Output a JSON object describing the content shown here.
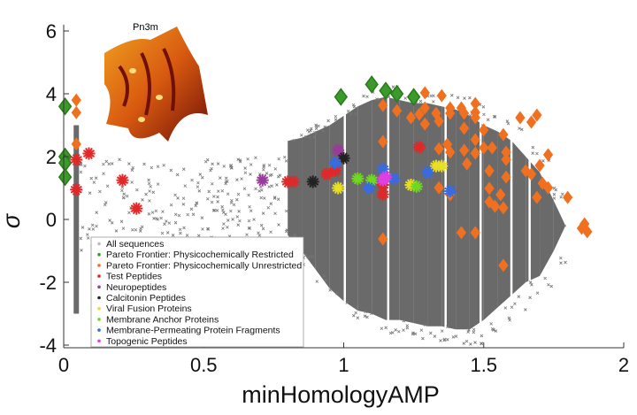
{
  "chart_data": {
    "type": "scatter",
    "xlabel": "minHomologyAMP",
    "ylabel": "σ",
    "xlim": [
      0,
      2
    ],
    "ylim": [
      -4.1,
      6
    ],
    "xticks": [
      "0",
      "0.5",
      "1",
      "1.5",
      "2"
    ],
    "xtick_values": [
      0,
      0.5,
      1,
      1.5,
      2
    ],
    "yticks": [
      "-4",
      "-2",
      "0",
      "2",
      "4",
      "6"
    ],
    "ytick_values": [
      -4,
      -2,
      0,
      2,
      4,
      6
    ],
    "grid": false,
    "legend_placement": "lower-left",
    "inset_label": "Pn3m",
    "all_sequences_density": [
      {
        "x": 0.045,
        "ymin": -3.0,
        "ymax": 3.0
      },
      {
        "x": 0.8,
        "ymin": -0.5,
        "ymax": 2.5
      },
      {
        "x": 0.85,
        "ymin": -1.0,
        "ymax": 2.6
      },
      {
        "x": 0.9,
        "ymin": -1.6,
        "ymax": 2.8
      },
      {
        "x": 0.95,
        "ymin": -2.2,
        "ymax": 3.0
      },
      {
        "x": 1.0,
        "ymin": -2.6,
        "ymax": 3.3
      },
      {
        "x": 1.05,
        "ymin": -2.9,
        "ymax": 3.6
      },
      {
        "x": 1.1,
        "ymin": -3.0,
        "ymax": 3.8
      },
      {
        "x": 1.15,
        "ymin": -3.2,
        "ymax": 3.9
      },
      {
        "x": 1.2,
        "ymin": -3.2,
        "ymax": 3.8
      },
      {
        "x": 1.25,
        "ymin": -3.3,
        "ymax": 3.7
      },
      {
        "x": 1.3,
        "ymin": -3.4,
        "ymax": 3.7
      },
      {
        "x": 1.35,
        "ymin": -3.4,
        "ymax": 3.6
      },
      {
        "x": 1.4,
        "ymin": -3.5,
        "ymax": 3.5
      },
      {
        "x": 1.45,
        "ymin": -3.5,
        "ymax": 3.3
      },
      {
        "x": 1.5,
        "ymin": -3.2,
        "ymax": 3.0
      },
      {
        "x": 1.55,
        "ymin": -2.8,
        "ymax": 2.8
      },
      {
        "x": 1.6,
        "ymin": -2.4,
        "ymax": 2.5
      },
      {
        "x": 1.65,
        "ymin": -2.0,
        "ymax": 2.0
      },
      {
        "x": 1.7,
        "ymin": -1.8,
        "ymax": 1.5
      },
      {
        "x": 1.75,
        "ymin": -1.0,
        "ymax": 0.6
      }
    ],
    "all_sequences_sparse": {
      "xmin": 0.06,
      "xmax": 0.8,
      "ymin": -1.0,
      "ymax": 2.0
    },
    "series": [
      {
        "name": "All sequences",
        "color": "#707070",
        "marker": "x"
      },
      {
        "name": "Pareto Frontier: Physicochemically Restricted",
        "color": "#3a9a2a",
        "marker": "diamond",
        "x": [
          0.005,
          0.005,
          0.005,
          0.005,
          0.99,
          1.1,
          1.15,
          1.19,
          1.25
        ],
        "y": [
          3.6,
          2.0,
          1.8,
          1.35,
          3.9,
          4.3,
          4.1,
          4.0,
          3.9
        ]
      },
      {
        "name": "Pareto Frontier: Physicochemically Unrestricted",
        "color": "#f07020",
        "marker": "diamond",
        "x": [
          0.045,
          0.045,
          0.045,
          1.1,
          1.14,
          1.14,
          1.14,
          1.19,
          1.24,
          1.27,
          1.29,
          1.29,
          1.29,
          1.35,
          1.33,
          1.34,
          1.38,
          1.38,
          1.42,
          1.43,
          1.43,
          1.47,
          1.47,
          1.47,
          1.47,
          1.47,
          1.47,
          1.42,
          1.34,
          1.37,
          1.38,
          1.43,
          1.44,
          1.34,
          1.38,
          1.5,
          1.5,
          1.53,
          1.57,
          1.58,
          1.58,
          1.58,
          1.52,
          1.52,
          1.56,
          1.52,
          1.54,
          1.57,
          1.63,
          1.67,
          1.69,
          1.65,
          1.67,
          1.7,
          1.71,
          1.69,
          1.73,
          1.73,
          1.8,
          1.85,
          1.87,
          1.86,
          1.57
        ],
        "y": [
          3.8,
          3.4,
          2.4,
          4.36,
          3.63,
          2.48,
          -0.62,
          3.46,
          3.24,
          3.35,
          4.03,
          3.55,
          3.04,
          3.94,
          3.38,
          3.13,
          3.55,
          3.38,
          3.55,
          3.38,
          2.9,
          3.69,
          3.41,
          3.24,
          2.54,
          2.11,
          -0.42,
          -0.42,
          2.25,
          2.39,
          2.14,
          2.2,
          1.77,
          1.01,
          0.79,
          2.85,
          2.28,
          2.28,
          2.7,
          2.14,
          1.91,
          1.35,
          1.55,
          0.99,
          0.79,
          0.56,
          0.42,
          0.37,
          3.24,
          3.1,
          3.32,
          1.55,
          1.44,
          1.72,
          1.15,
          0.7,
          2.06,
          1.01,
          0.7,
          -0.28,
          -0.39,
          -0.14,
          -1.46
        ]
      },
      {
        "name": "Test Peptides",
        "color": "#e02828",
        "marker": "star",
        "x": [
          0.045,
          0.045,
          0.09,
          0.21,
          0.26,
          0.8,
          0.82,
          0.94,
          0.97,
          1.14,
          1.14,
          1.27
        ],
        "y": [
          1.9,
          0.95,
          2.1,
          1.25,
          0.35,
          1.2,
          1.2,
          1.45,
          1.55,
          0.8,
          1.1,
          2.3
        ]
      },
      {
        "name": "Neuropeptides",
        "color": "#9a3a9a",
        "marker": "star",
        "x": [
          0.71,
          0.98
        ],
        "y": [
          1.25,
          2.2
        ]
      },
      {
        "name": "Calcitonin Peptides",
        "color": "#222222",
        "marker": "star",
        "x": [
          0.89,
          1.0
        ],
        "y": [
          1.2,
          1.95
        ]
      },
      {
        "name": "Viral Fusion Proteins",
        "color": "#e8e020",
        "marker": "star",
        "x": [
          0.98,
          1.33,
          1.35,
          1.24
        ],
        "y": [
          1.0,
          1.7,
          1.7,
          1.1
        ]
      },
      {
        "name": "Membrane Anchor Proteins",
        "color": "#70d820",
        "marker": "star",
        "x": [
          1.05,
          1.1,
          1.26
        ],
        "y": [
          1.3,
          1.25,
          1.05
        ]
      },
      {
        "name": "Membrane-Permeating Protein Fragments",
        "color": "#3a6ae0",
        "marker": "star",
        "x": [
          0.97,
          1.09,
          1.14,
          1.18,
          1.3,
          1.38
        ],
        "y": [
          1.8,
          1.0,
          1.6,
          1.3,
          1.5,
          0.9
        ]
      },
      {
        "name": "Topogenic Peptides",
        "color": "#e040e0",
        "marker": "star",
        "x": [
          1.14,
          1.15
        ],
        "y": [
          1.25,
          1.35
        ]
      }
    ]
  }
}
